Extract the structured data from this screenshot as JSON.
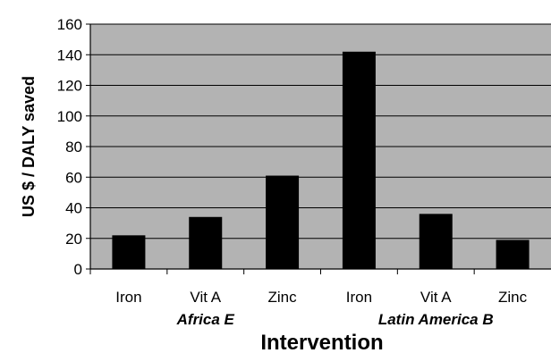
{
  "chart_data": {
    "type": "bar",
    "categories": [
      "Iron",
      "Vit A",
      "Zinc",
      "Iron",
      "Vit A",
      "Zinc"
    ],
    "groups": [
      {
        "label": "Africa E",
        "categories": [
          "Iron",
          "Vit A",
          "Zinc"
        ]
      },
      {
        "label": "Latin America B",
        "categories": [
          "Iron",
          "Vit A",
          "Zinc"
        ]
      }
    ],
    "values": [
      22,
      34,
      61,
      142,
      36,
      19
    ],
    "xlabel": "Intervention",
    "ylabel": "US $ / DALY saved",
    "ylim": [
      0,
      160
    ],
    "yticks": [
      0,
      20,
      40,
      60,
      80,
      100,
      120,
      140,
      160
    ],
    "grid": true,
    "legend": "none",
    "colors": {
      "plot_background": "#b3b3b3",
      "bar": "#000000",
      "gridline": "#000000"
    }
  }
}
